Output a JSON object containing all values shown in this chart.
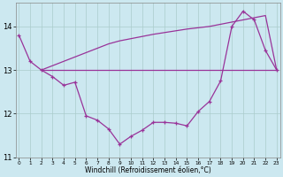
{
  "x": [
    0,
    1,
    2,
    3,
    4,
    5,
    6,
    7,
    8,
    9,
    10,
    11,
    12,
    13,
    14,
    15,
    16,
    17,
    18,
    19,
    20,
    21,
    22,
    23
  ],
  "windchill": [
    13.8,
    13.2,
    13.0,
    12.85,
    12.65,
    12.72,
    11.95,
    11.85,
    11.65,
    11.3,
    11.48,
    11.62,
    11.8,
    11.8,
    11.78,
    11.72,
    12.05,
    12.28,
    12.75,
    14.0,
    14.35,
    14.15,
    13.45,
    13.0
  ],
  "line_flat": [
    null,
    null,
    13.0,
    13.0,
    13.0,
    13.0,
    13.0,
    13.0,
    13.0,
    13.0,
    13.0,
    13.0,
    13.0,
    13.0,
    13.0,
    13.0,
    13.0,
    13.0,
    13.0,
    13.0,
    13.0,
    13.0,
    13.0,
    13.0
  ],
  "line_rise": [
    null,
    null,
    13.0,
    13.1,
    13.2,
    13.3,
    13.4,
    13.5,
    13.6,
    13.67,
    13.72,
    13.77,
    13.82,
    13.86,
    13.9,
    13.94,
    13.97,
    14.0,
    14.05,
    14.1,
    14.15,
    14.2,
    14.25,
    13.0
  ],
  "color": "#993399",
  "bg_color": "#cce8f0",
  "grid_color": "#aacccc",
  "ylim": [
    11.0,
    14.55
  ],
  "xlim_min": -0.3,
  "xlim_max": 23.3,
  "yticks": [
    11,
    12,
    13,
    14
  ],
  "xticks": [
    0,
    1,
    2,
    3,
    4,
    5,
    6,
    7,
    8,
    9,
    10,
    11,
    12,
    13,
    14,
    15,
    16,
    17,
    18,
    19,
    20,
    21,
    22,
    23
  ],
  "xlabel": "Windchill (Refroidissement éolien,°C)"
}
